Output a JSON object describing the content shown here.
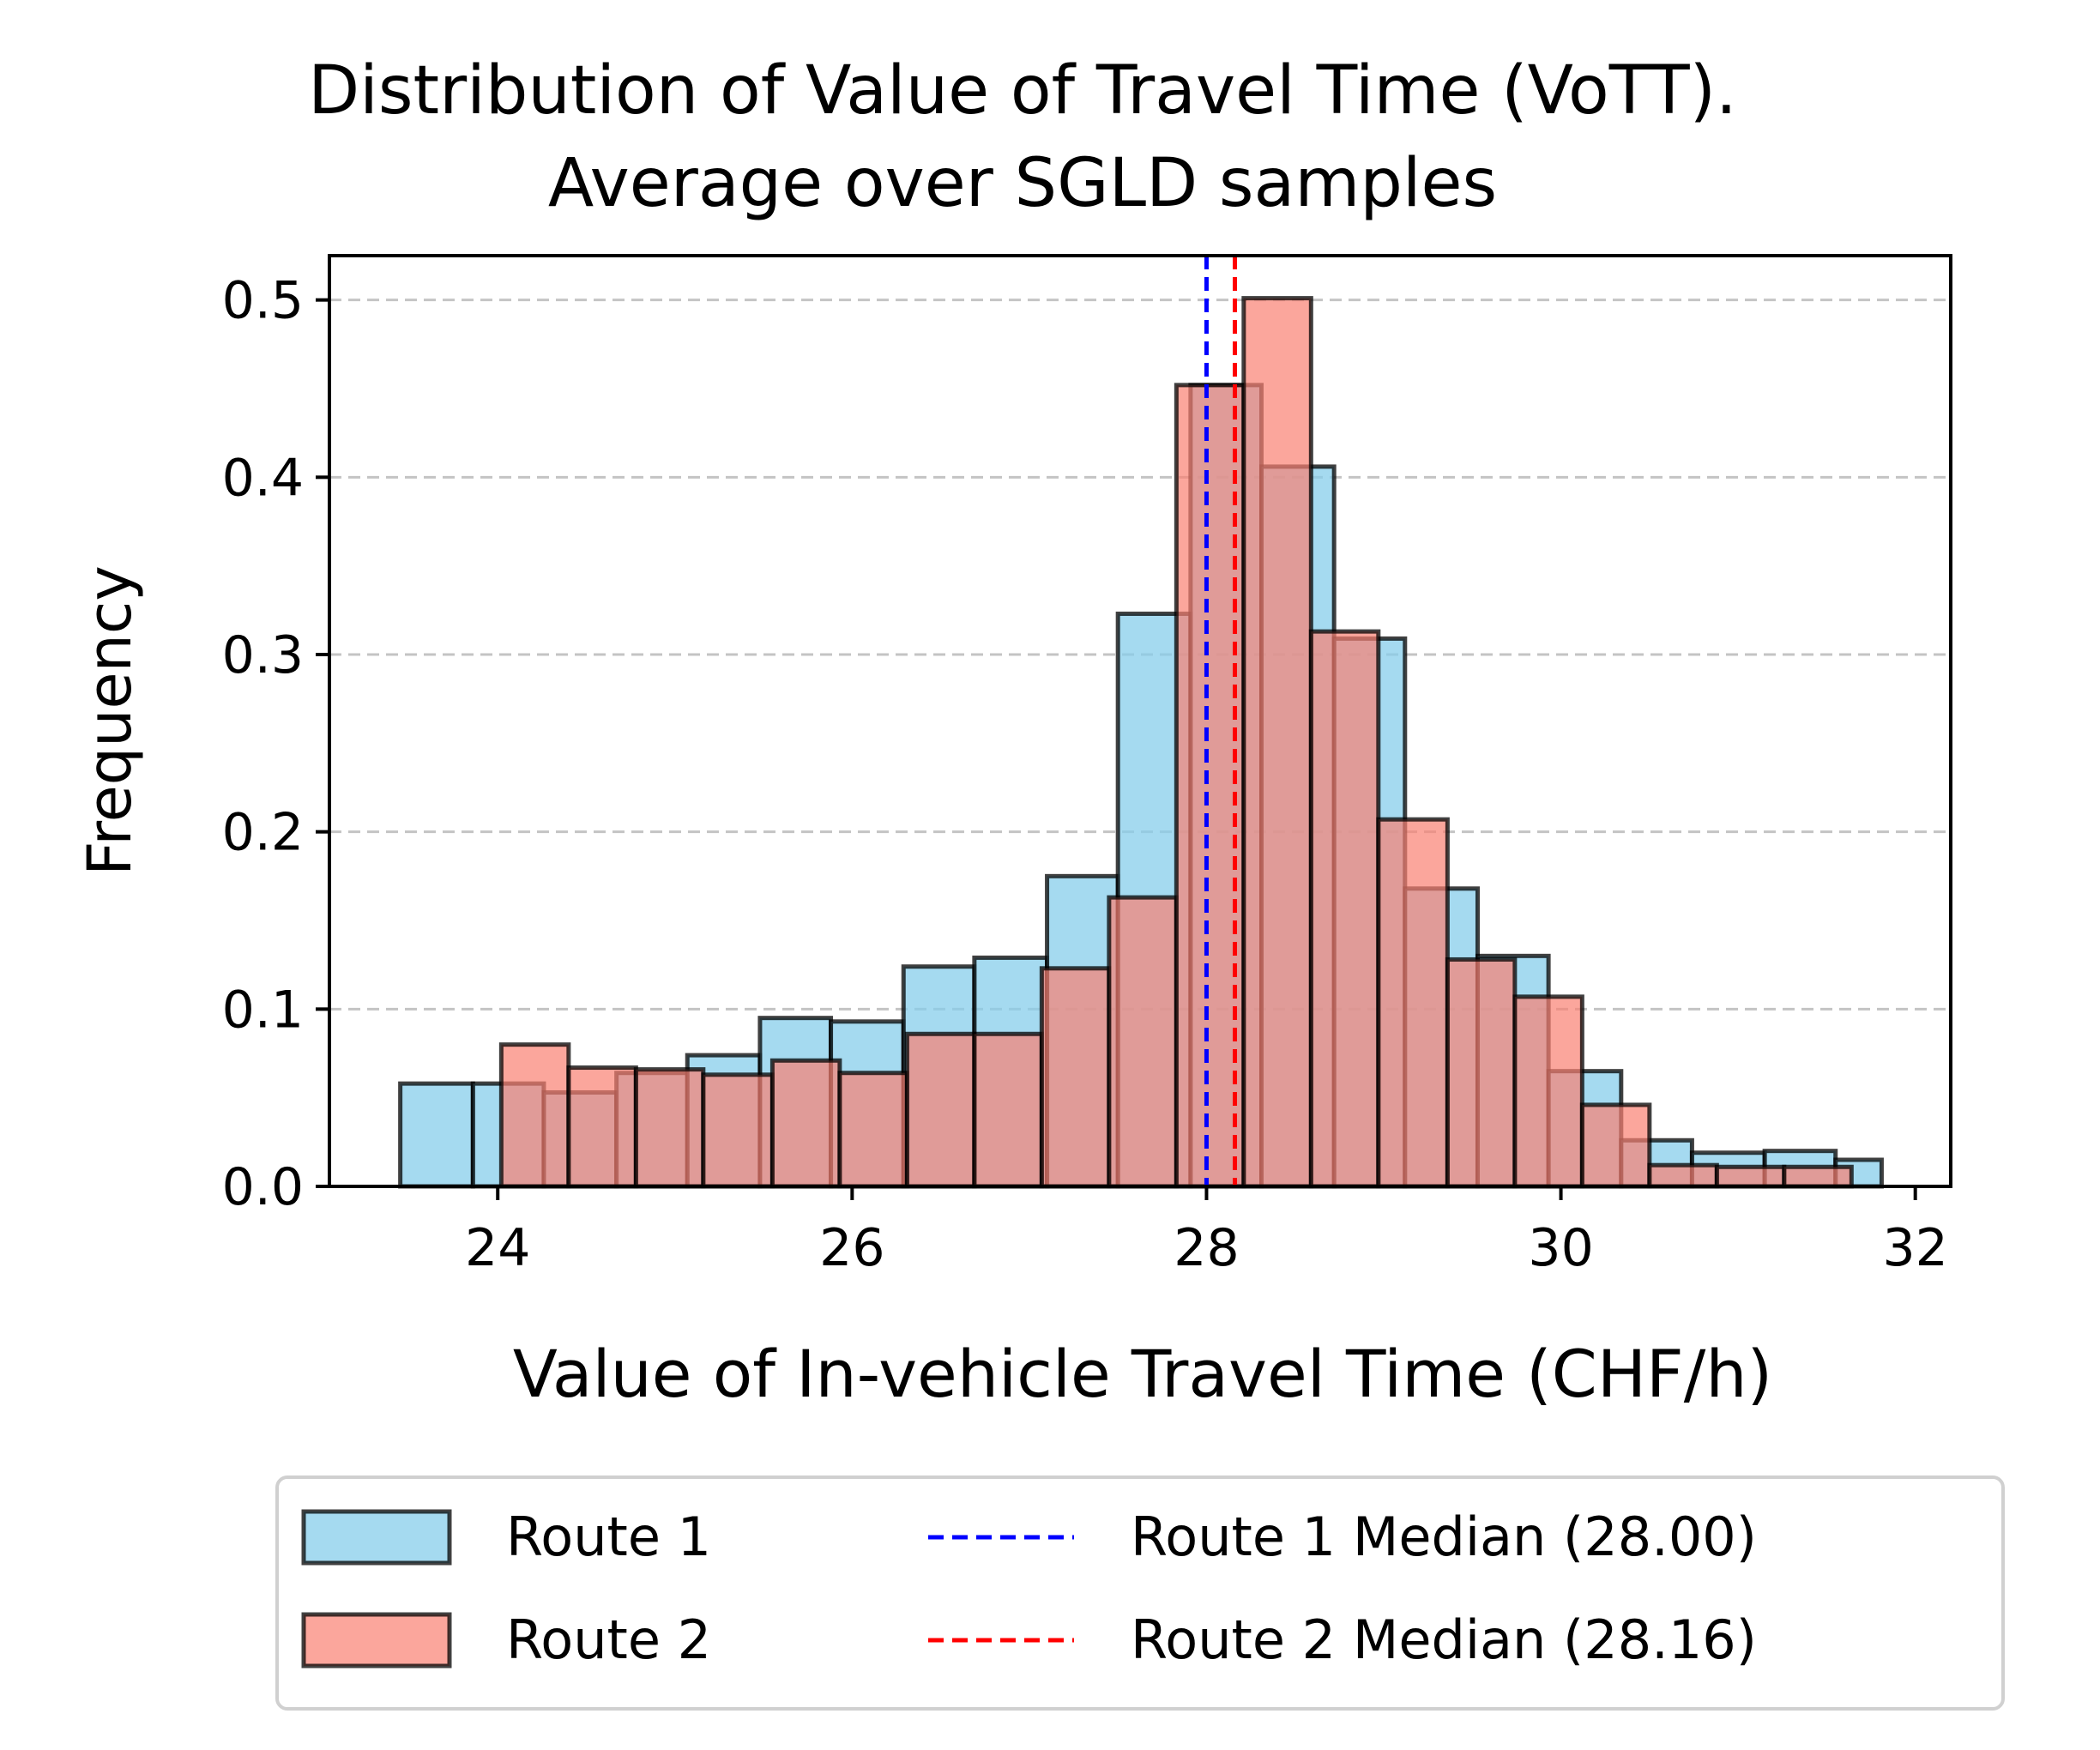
{
  "chart_data": {
    "type": "histogram",
    "title": [
      "Distribution of Value of Travel Time (VoTT).",
      "Average over SGLD samples"
    ],
    "xlabel": "Value of In-vehicle Travel Time (CHF/h)",
    "ylabel": "Frequency",
    "xlim": [
      23.05,
      32.2
    ],
    "ylim": [
      0,
      0.525
    ],
    "xticks": [
      24,
      26,
      28,
      30,
      32
    ],
    "yticks": [
      0.0,
      0.1,
      0.2,
      0.3,
      0.4,
      0.5
    ],
    "grid": "y-dashed",
    "legend_placement": "below",
    "series": [
      {
        "name": "Route 1",
        "color": "#87ceeb",
        "alpha": 0.75,
        "edge_color": "#000000",
        "bins": [
          {
            "x0": 23.45,
            "x1": 23.86,
            "y": 0.058
          },
          {
            "x0": 23.86,
            "x1": 24.26,
            "y": 0.058
          },
          {
            "x0": 24.26,
            "x1": 24.67,
            "y": 0.053
          },
          {
            "x0": 24.67,
            "x1": 25.07,
            "y": 0.064
          },
          {
            "x0": 25.07,
            "x1": 25.48,
            "y": 0.074
          },
          {
            "x0": 25.48,
            "x1": 25.88,
            "y": 0.095
          },
          {
            "x0": 25.88,
            "x1": 26.29,
            "y": 0.093
          },
          {
            "x0": 26.29,
            "x1": 26.69,
            "y": 0.124
          },
          {
            "x0": 26.69,
            "x1": 27.1,
            "y": 0.129
          },
          {
            "x0": 27.1,
            "x1": 27.5,
            "y": 0.175
          },
          {
            "x0": 27.5,
            "x1": 27.91,
            "y": 0.323
          },
          {
            "x0": 27.91,
            "x1": 28.31,
            "y": 0.452
          },
          {
            "x0": 28.31,
            "x1": 28.72,
            "y": 0.406
          },
          {
            "x0": 28.72,
            "x1": 29.12,
            "y": 0.309
          },
          {
            "x0": 29.12,
            "x1": 29.53,
            "y": 0.168
          },
          {
            "x0": 29.53,
            "x1": 29.93,
            "y": 0.13
          },
          {
            "x0": 29.93,
            "x1": 30.34,
            "y": 0.065
          },
          {
            "x0": 30.34,
            "x1": 30.74,
            "y": 0.026
          },
          {
            "x0": 30.74,
            "x1": 31.15,
            "y": 0.019
          },
          {
            "x0": 31.15,
            "x1": 31.55,
            "y": 0.02
          },
          {
            "x0": 31.55,
            "x1": 31.81,
            "y": 0.015
          }
        ]
      },
      {
        "name": "Route 2",
        "color": "#fa8072",
        "alpha": 0.7,
        "edge_color": "#000000",
        "bins": [
          {
            "x0": 24.02,
            "x1": 24.4,
            "y": 0.08
          },
          {
            "x0": 24.4,
            "x1": 24.78,
            "y": 0.067
          },
          {
            "x0": 24.78,
            "x1": 25.16,
            "y": 0.066
          },
          {
            "x0": 25.16,
            "x1": 25.55,
            "y": 0.063
          },
          {
            "x0": 25.55,
            "x1": 25.93,
            "y": 0.071
          },
          {
            "x0": 25.93,
            "x1": 26.31,
            "y": 0.064
          },
          {
            "x0": 26.31,
            "x1": 26.69,
            "y": 0.086
          },
          {
            "x0": 26.69,
            "x1": 27.07,
            "y": 0.086
          },
          {
            "x0": 27.07,
            "x1": 27.45,
            "y": 0.123
          },
          {
            "x0": 27.45,
            "x1": 27.83,
            "y": 0.163
          },
          {
            "x0": 27.83,
            "x1": 28.21,
            "y": 0.452
          },
          {
            "x0": 28.21,
            "x1": 28.59,
            "y": 0.501
          },
          {
            "x0": 28.59,
            "x1": 28.97,
            "y": 0.313
          },
          {
            "x0": 28.97,
            "x1": 29.36,
            "y": 0.207
          },
          {
            "x0": 29.36,
            "x1": 29.74,
            "y": 0.128
          },
          {
            "x0": 29.74,
            "x1": 30.12,
            "y": 0.107
          },
          {
            "x0": 30.12,
            "x1": 30.5,
            "y": 0.046
          },
          {
            "x0": 30.5,
            "x1": 30.88,
            "y": 0.012
          },
          {
            "x0": 30.88,
            "x1": 31.26,
            "y": 0.011
          },
          {
            "x0": 31.26,
            "x1": 31.64,
            "y": 0.011
          }
        ]
      }
    ],
    "medians": [
      {
        "name": "Route 1 Median (28.00)",
        "value": 28.0,
        "color": "#0000ff"
      },
      {
        "name": "Route 2 Median (28.16)",
        "value": 28.16,
        "color": "#ff0000"
      }
    ]
  }
}
